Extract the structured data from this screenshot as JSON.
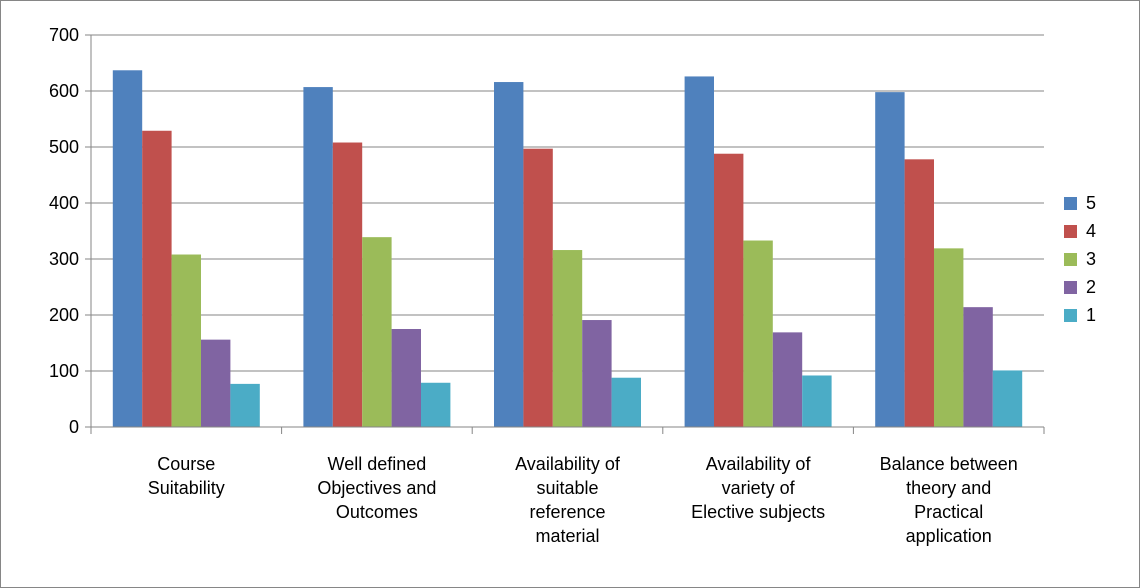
{
  "chart_data": {
    "type": "bar",
    "title": "",
    "xlabel": "",
    "ylabel": "",
    "ylim": [
      0,
      700
    ],
    "yticks": [
      0,
      100,
      200,
      300,
      400,
      500,
      600,
      700
    ],
    "grid": true,
    "legend_position": "right",
    "categories": [
      [
        "Course",
        "Suitability"
      ],
      [
        "Well defined",
        "Objectives and",
        "Outcomes"
      ],
      [
        "Availability of",
        "suitable",
        "reference",
        "material"
      ],
      [
        "Availability of",
        "variety of",
        "Elective subjects"
      ],
      [
        "Balance between",
        "theory and",
        "Practical",
        "application"
      ]
    ],
    "series": [
      {
        "name": "5",
        "color": "#4F81BD",
        "values": [
          637,
          607,
          616,
          626,
          598
        ]
      },
      {
        "name": "4",
        "color": "#C0504D",
        "values": [
          529,
          508,
          497,
          488,
          478
        ]
      },
      {
        "name": "3",
        "color": "#9BBB59",
        "values": [
          308,
          339,
          316,
          333,
          319
        ]
      },
      {
        "name": "2",
        "color": "#8064A2",
        "values": [
          156,
          175,
          191,
          169,
          214
        ]
      },
      {
        "name": "1",
        "color": "#4BACC6",
        "values": [
          77,
          79,
          88,
          92,
          101
        ]
      }
    ]
  }
}
